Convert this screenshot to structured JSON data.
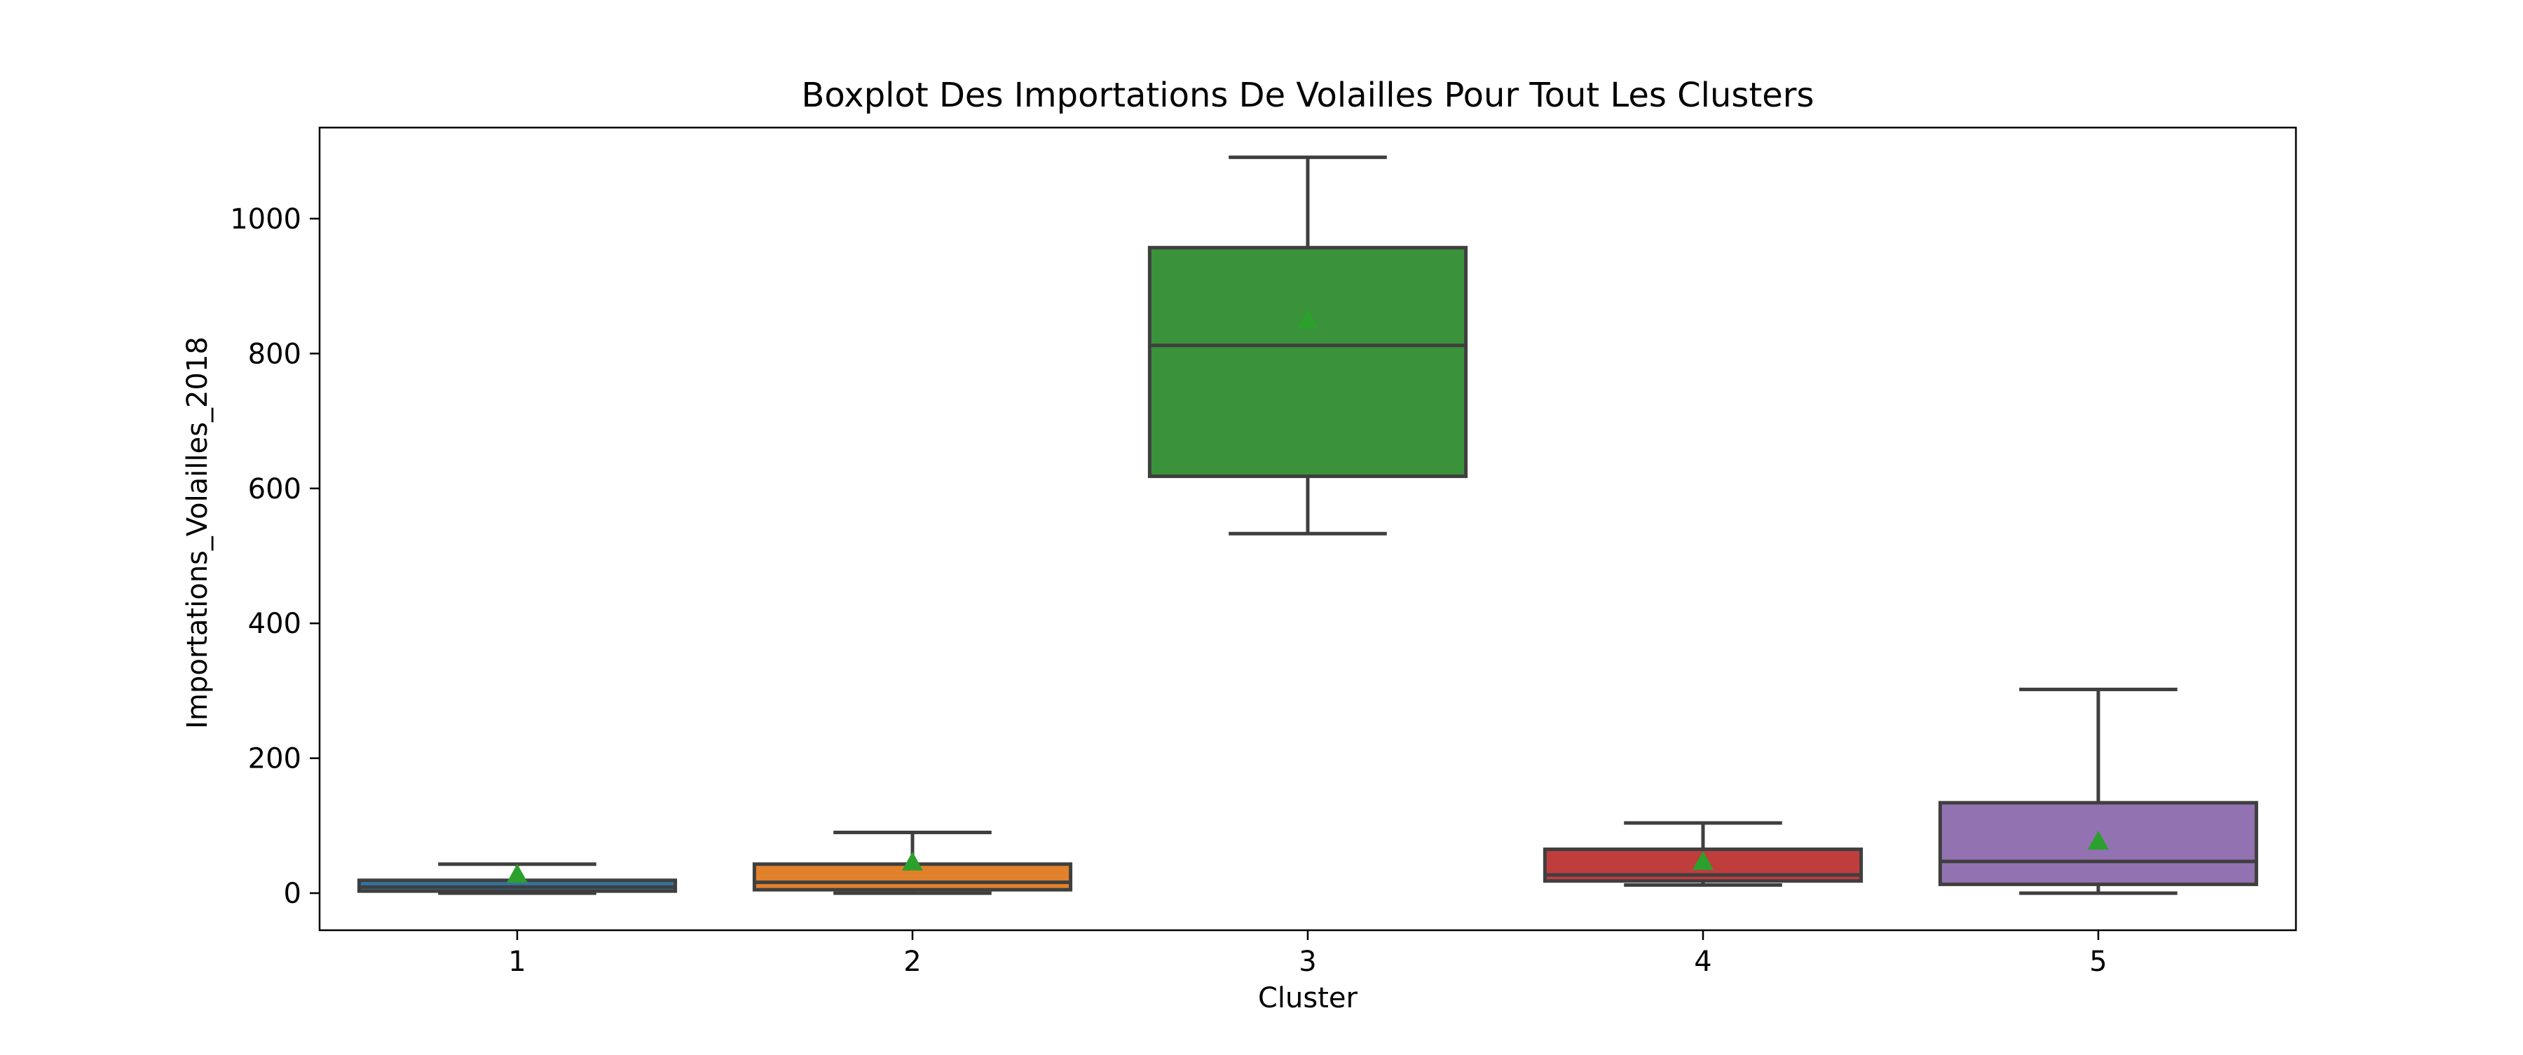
{
  "chart_data": {
    "type": "box",
    "title": "Boxplot Des Importations De Volailles Pour Tout Les Clusters",
    "xlabel": "Cluster",
    "ylabel": "Importations_Volailles_2018",
    "categories": [
      "1",
      "2",
      "3",
      "4",
      "5"
    ],
    "ylim": [
      -55,
      1135
    ],
    "yticks": [
      0,
      200,
      400,
      600,
      800,
      1000
    ],
    "grid": false,
    "boxes": [
      {
        "category": "1",
        "whisker_low": 0,
        "q1": 3,
        "median": 9,
        "q3": 19,
        "whisker_high": 43,
        "mean": 28,
        "color": "#3274a1"
      },
      {
        "category": "2",
        "whisker_low": 0,
        "q1": 5,
        "median": 16,
        "q3": 43,
        "whisker_high": 90,
        "mean": 46,
        "color": "#e1812c"
      },
      {
        "category": "3",
        "whisker_low": 533,
        "q1": 618,
        "median": 812,
        "q3": 957,
        "whisker_high": 1091,
        "mean": 850,
        "color": "#3a923a"
      },
      {
        "category": "4",
        "whisker_low": 12,
        "q1": 18,
        "median": 27,
        "q3": 65,
        "whisker_high": 104,
        "mean": 47,
        "color": "#c03d3e"
      },
      {
        "category": "5",
        "whisker_low": 0,
        "q1": 13,
        "median": 47,
        "q3": 134,
        "whisker_high": 302,
        "mean": 77,
        "color": "#9372b2"
      }
    ],
    "mean_marker_color": "#2ca02c",
    "line_color": "#3f3f3f"
  }
}
